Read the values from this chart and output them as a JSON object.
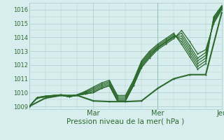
{
  "title": "",
  "xlabel": "Pression niveau de la mer( hPa )",
  "ylabel": "",
  "bg_color": "#d8eeee",
  "grid_color": "#aacccc",
  "line_color": "#2d6a2d",
  "ylim": [
    1008.8,
    1016.5
  ],
  "xlim": [
    0,
    72
  ],
  "yticks": [
    1009,
    1010,
    1011,
    1012,
    1013,
    1014,
    1015,
    1016
  ],
  "xtick_positions": [
    0,
    24,
    48,
    72
  ],
  "xtick_labels": [
    "",
    "Mar",
    "Mer",
    "Jeu"
  ],
  "line_width": 0.9,
  "marker_size": 2.0,
  "series": [
    [
      0,
      1009.0,
      3,
      1009.6,
      6,
      1009.7,
      9,
      1009.75,
      12,
      1009.8,
      15,
      1009.7,
      18,
      1009.8,
      21,
      1009.9,
      24,
      1010.0,
      27,
      1010.3,
      30,
      1010.5,
      33,
      1009.4,
      36,
      1009.4,
      39,
      1010.5,
      42,
      1011.8,
      45,
      1012.5,
      48,
      1013.1,
      51,
      1013.5,
      54,
      1013.9,
      57,
      1014.5,
      60,
      1013.7,
      63,
      1012.8,
      66,
      1013.1,
      69,
      1015.0,
      72,
      1016.0
    ],
    [
      0,
      1009.0,
      3,
      1009.6,
      6,
      1009.7,
      9,
      1009.75,
      12,
      1009.8,
      15,
      1009.7,
      18,
      1009.8,
      21,
      1009.9,
      24,
      1010.0,
      27,
      1010.3,
      30,
      1010.5,
      33,
      1009.4,
      36,
      1009.4,
      39,
      1010.5,
      42,
      1011.9,
      45,
      1012.6,
      48,
      1013.2,
      51,
      1013.6,
      54,
      1014.0,
      57,
      1014.3,
      60,
      1013.4,
      63,
      1012.5,
      66,
      1012.9,
      69,
      1015.1,
      72,
      1016.1
    ],
    [
      0,
      1009.0,
      3,
      1009.6,
      6,
      1009.7,
      9,
      1009.75,
      12,
      1009.8,
      15,
      1009.7,
      18,
      1009.8,
      21,
      1009.95,
      24,
      1010.1,
      27,
      1010.4,
      30,
      1010.6,
      33,
      1009.5,
      36,
      1009.5,
      39,
      1010.6,
      42,
      1012.0,
      45,
      1012.7,
      48,
      1013.25,
      51,
      1013.65,
      54,
      1014.05,
      57,
      1014.1,
      60,
      1013.2,
      63,
      1012.3,
      66,
      1012.7,
      69,
      1015.2,
      72,
      1016.15
    ],
    [
      0,
      1009.0,
      3,
      1009.6,
      6,
      1009.7,
      9,
      1009.75,
      12,
      1009.8,
      15,
      1009.7,
      18,
      1009.8,
      21,
      1010.0,
      24,
      1010.2,
      27,
      1010.5,
      30,
      1010.7,
      33,
      1009.6,
      36,
      1009.6,
      39,
      1010.7,
      42,
      1012.1,
      45,
      1012.8,
      48,
      1013.3,
      51,
      1013.7,
      54,
      1014.1,
      57,
      1013.9,
      60,
      1013.0,
      63,
      1012.1,
      66,
      1012.5,
      69,
      1015.3,
      72,
      1016.2
    ],
    [
      0,
      1009.0,
      3,
      1009.65,
      6,
      1009.75,
      9,
      1009.8,
      12,
      1009.85,
      15,
      1009.75,
      18,
      1009.85,
      21,
      1010.05,
      24,
      1010.3,
      27,
      1010.6,
      30,
      1010.8,
      33,
      1009.7,
      36,
      1009.7,
      39,
      1010.8,
      42,
      1012.2,
      45,
      1012.9,
      48,
      1013.4,
      51,
      1013.8,
      54,
      1014.2,
      57,
      1013.7,
      60,
      1012.8,
      63,
      1011.9,
      66,
      1012.3,
      69,
      1015.4,
      72,
      1016.25
    ],
    [
      0,
      1009.0,
      3,
      1009.65,
      6,
      1009.75,
      9,
      1009.8,
      12,
      1009.85,
      15,
      1009.75,
      18,
      1009.85,
      21,
      1010.1,
      24,
      1010.4,
      27,
      1010.7,
      30,
      1010.9,
      33,
      1009.8,
      36,
      1009.8,
      39,
      1010.9,
      42,
      1012.3,
      45,
      1013.0,
      48,
      1013.5,
      51,
      1013.9,
      54,
      1014.3,
      57,
      1013.5,
      60,
      1012.6,
      63,
      1011.7,
      66,
      1012.1,
      69,
      1015.5,
      72,
      1016.3
    ]
  ],
  "bold_series": [
    [
      0,
      1009.0,
      6,
      1009.6,
      12,
      1009.8,
      18,
      1009.8,
      24,
      1009.4,
      30,
      1009.35,
      36,
      1009.35,
      42,
      1009.4,
      48,
      1010.3,
      54,
      1011.0,
      60,
      1011.3,
      66,
      1011.3,
      72,
      1015.8
    ]
  ]
}
